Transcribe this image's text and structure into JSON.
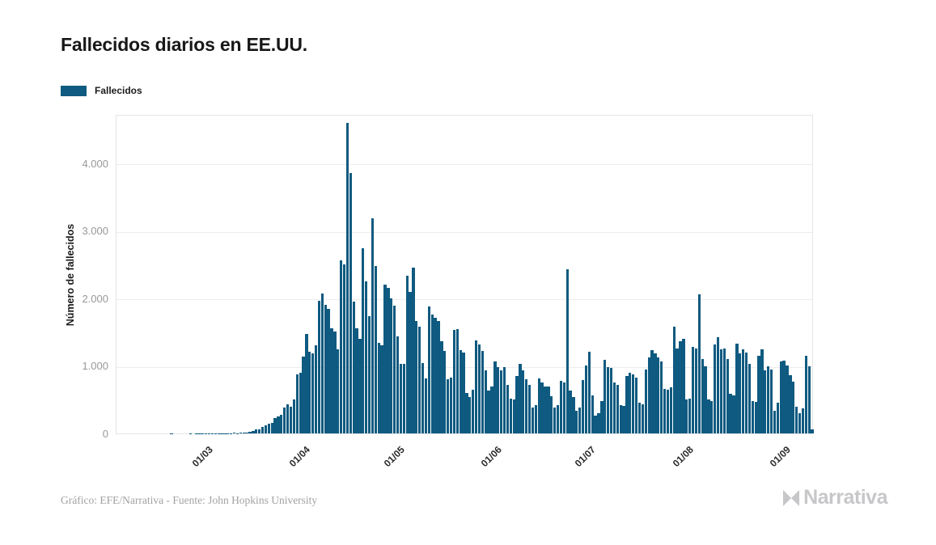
{
  "title": "Fallecidos diarios en EE.UU.",
  "legend": {
    "label": "Fallecidos",
    "swatch_color": "#0f5a80"
  },
  "y_axis": {
    "title": "Número de fallecidos",
    "tick_labels": [
      "0",
      "1.000",
      "2.000",
      "3.000",
      "4.000"
    ],
    "tick_values": [
      0,
      1000,
      2000,
      3000,
      4000
    ]
  },
  "x_axis": {
    "ticks": [
      {
        "label": "01/03",
        "date": "2020-03-01"
      },
      {
        "label": "01/04",
        "date": "2020-04-01"
      },
      {
        "label": "01/05",
        "date": "2020-05-01"
      },
      {
        "label": "01/06",
        "date": "2020-06-01"
      },
      {
        "label": "01/07",
        "date": "2020-07-01"
      },
      {
        "label": "01/08",
        "date": "2020-08-01"
      },
      {
        "label": "01/09",
        "date": "2020-09-01"
      }
    ]
  },
  "footer": {
    "credit": "Gráfico: EFE/Narrativa - Fuente: John Hopkins University"
  },
  "logo": {
    "text": "Narrativa"
  },
  "colors": {
    "bar": "#0f5a80",
    "grid": "#ececec",
    "axis_border": "#e4e4e4",
    "title_text": "#181818",
    "y_tick_text": "#989898",
    "x_tick_text": "#2a2a2a",
    "credit_text": "#a2a2a2",
    "logo_text": "#c7c7ca"
  },
  "chart_data": {
    "type": "bar",
    "title": "Fallecidos diarios en EE.UU.",
    "xlabel": "",
    "ylabel": "Número de fallecidos",
    "ylim": [
      0,
      4730
    ],
    "x_domain": [
      "2020-02-03",
      "2020-09-12"
    ],
    "grid": true,
    "legend_position": "top-left",
    "series": [
      {
        "name": "Fallecidos",
        "start_date": "2020-02-15",
        "frequency": "daily",
        "values": [
          0,
          0,
          0,
          0,
          0,
          1,
          0,
          0,
          0,
          0,
          0,
          1,
          0,
          1,
          1,
          1,
          4,
          3,
          2,
          1,
          3,
          4,
          3,
          4,
          4,
          7,
          5,
          8,
          12,
          16,
          25,
          40,
          57,
          63,
          90,
          115,
          140,
          155,
          225,
          250,
          272,
          385,
          430,
          400,
          505,
          870,
          900,
          1140,
          1470,
          1210,
          1190,
          1300,
          1960,
          2070,
          1910,
          1840,
          1560,
          1510,
          1240,
          2560,
          2500,
          4600,
          3860,
          1950,
          1560,
          1400,
          2740,
          2250,
          1740,
          3180,
          2480,
          1340,
          1300,
          2200,
          2160,
          2000,
          1890,
          1440,
          1030,
          1030,
          2330,
          2100,
          2450,
          1660,
          1580,
          1040,
          820,
          1880,
          1760,
          1710,
          1660,
          1360,
          1220,
          800,
          830,
          1530,
          1550,
          1230,
          1200,
          600,
          540,
          650,
          1380,
          1320,
          1220,
          940,
          640,
          700,
          1060,
          980,
          930,
          980,
          720,
          520,
          500,
          850,
          1030,
          940,
          800,
          720,
          380,
          420,
          820,
          760,
          690,
          700,
          550,
          380,
          420,
          780,
          760,
          2430,
          640,
          540,
          330,
          380,
          790,
          1010,
          1210,
          560,
          260,
          300,
          480,
          1090,
          980,
          970,
          760,
          720,
          420,
          410,
          850,
          900,
          870,
          830,
          450,
          430,
          950,
          1130,
          1230,
          1180,
          1120,
          1060,
          660,
          650,
          680,
          1580,
          1260,
          1360,
          1400,
          500,
          520,
          1280,
          1260,
          2060,
          1100,
          1000,
          500,
          480,
          1320,
          1420,
          1250,
          1260,
          1100,
          590,
          560,
          1330,
          1180,
          1240,
          1200,
          1030,
          480,
          470,
          1150,
          1240,
          940,
          990,
          950,
          330,
          450,
          1060,
          1080,
          1010,
          860,
          770,
          400,
          300,
          370,
          1150,
          1000,
          60
        ]
      }
    ]
  }
}
